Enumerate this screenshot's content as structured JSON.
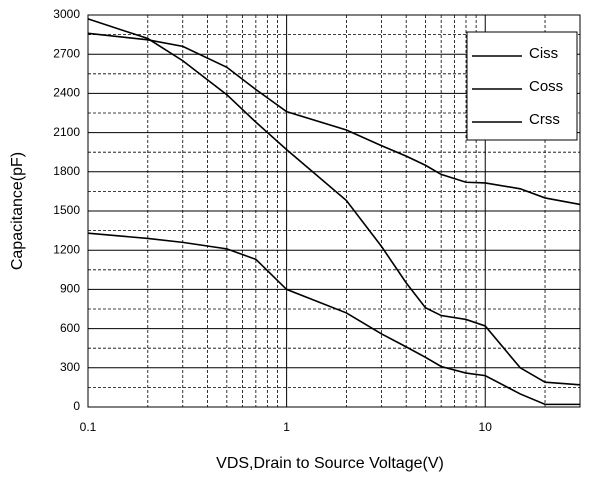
{
  "chart_data": {
    "type": "line",
    "xlabel": "VDS,Drain to Source Voltage(V)",
    "ylabel": "Capacitance(pF)",
    "x": [
      0.1,
      0.2,
      0.3,
      0.5,
      0.7,
      1,
      2,
      3,
      4,
      5,
      6,
      8,
      10,
      15,
      20,
      30
    ],
    "series": [
      {
        "name": "Ciss",
        "color": "#000000",
        "values": [
          2860,
          2810,
          2760,
          2600,
          2430,
          2260,
          2120,
          2000,
          1920,
          1850,
          1780,
          1720,
          1715,
          1670,
          1600,
          1550
        ]
      },
      {
        "name": "Coss",
        "color": "#000000",
        "values": [
          2970,
          2820,
          2650,
          2390,
          2180,
          1970,
          1580,
          1230,
          950,
          760,
          700,
          670,
          620,
          300,
          190,
          170
        ]
      },
      {
        "name": "Crss",
        "color": "#000000",
        "values": [
          1330,
          1290,
          1260,
          1210,
          1130,
          900,
          720,
          560,
          460,
          380,
          310,
          260,
          240,
          100,
          20,
          20
        ]
      }
    ],
    "xscale": "log",
    "xlim": [
      0.1,
      30
    ],
    "xticks": [
      0.1,
      1,
      10
    ],
    "xminorticks": [
      0.2,
      0.3,
      0.4,
      0.5,
      0.6,
      0.7,
      0.8,
      0.9,
      2,
      3,
      4,
      5,
      6,
      7,
      8,
      9,
      20,
      30
    ],
    "ylim": [
      0,
      3000
    ],
    "yticks": [
      0,
      300,
      600,
      900,
      1200,
      1500,
      1800,
      2100,
      2400,
      2700,
      3000
    ],
    "yminorticks": [
      150,
      450,
      750,
      1050,
      1350,
      1650,
      1950,
      2250,
      2550,
      2850
    ],
    "grid": true,
    "legend": "upper right"
  }
}
